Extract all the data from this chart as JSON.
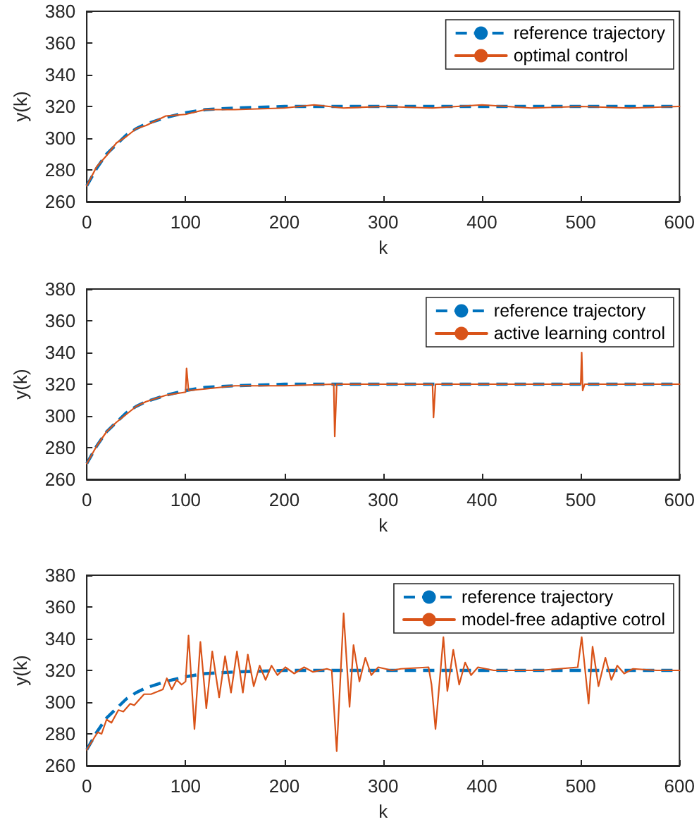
{
  "chart_data": [
    {
      "type": "line",
      "xlabel": "k",
      "ylabel": "y(k)",
      "xlim": [
        0,
        600
      ],
      "ylim": [
        260,
        380
      ],
      "xticks": [
        0,
        100,
        200,
        300,
        400,
        500,
        600
      ],
      "yticks": [
        260,
        280,
        300,
        320,
        340,
        360,
        380
      ],
      "legend": "top right",
      "series": [
        {
          "name": "reference trajectory",
          "color": "#0072bd",
          "line_style": "dashed",
          "x": [
            0,
            10,
            20,
            30,
            40,
            50,
            60,
            80,
            100,
            120,
            150,
            200,
            250,
            300,
            400,
            500,
            600
          ],
          "values": [
            270,
            281,
            290,
            296,
            302,
            306,
            309,
            313,
            316,
            318,
            319,
            320,
            320,
            320,
            320,
            320,
            320
          ]
        },
        {
          "name": "optimal control",
          "color": "#d95319",
          "line_style": "solid",
          "x": [
            0,
            10,
            20,
            30,
            40,
            50,
            60,
            80,
            100,
            120,
            150,
            200,
            230,
            260,
            300,
            350,
            400,
            450,
            500,
            550,
            600
          ],
          "values": [
            270,
            282,
            289,
            297,
            301,
            306,
            308,
            314,
            315,
            318,
            318,
            319,
            321,
            319,
            320,
            319,
            321,
            319,
            320,
            319,
            320
          ]
        }
      ]
    },
    {
      "type": "line",
      "xlabel": "k",
      "ylabel": "y(k)",
      "xlim": [
        0,
        600
      ],
      "ylim": [
        260,
        380
      ],
      "xticks": [
        0,
        100,
        200,
        300,
        400,
        500,
        600
      ],
      "yticks": [
        260,
        280,
        300,
        320,
        340,
        360,
        380
      ],
      "legend": "top right",
      "series": [
        {
          "name": "reference trajectory",
          "color": "#0072bd",
          "line_style": "dashed",
          "x": [
            0,
            10,
            20,
            30,
            40,
            50,
            60,
            80,
            100,
            120,
            150,
            200,
            250,
            300,
            400,
            500,
            600
          ],
          "values": [
            270,
            281,
            290,
            296,
            302,
            306,
            309,
            313,
            316,
            318,
            319,
            320,
            320,
            320,
            320,
            320,
            320
          ]
        },
        {
          "name": "active learning control",
          "color": "#d95319",
          "line_style": "solid",
          "x": [
            0,
            10,
            20,
            30,
            40,
            50,
            60,
            80,
            100,
            101,
            103,
            120,
            150,
            200,
            250,
            251,
            253,
            300,
            350,
            351,
            353,
            400,
            500,
            501,
            502,
            504,
            550,
            600
          ],
          "values": [
            270,
            281,
            290,
            296,
            301,
            306,
            309,
            313,
            315,
            330,
            316,
            317,
            319,
            319,
            320,
            287,
            320,
            320,
            320,
            299,
            320,
            320,
            320,
            340,
            316,
            320,
            320,
            320
          ]
        }
      ]
    },
    {
      "type": "line",
      "xlabel": "k",
      "ylabel": "y(k)",
      "xlim": [
        0,
        600
      ],
      "ylim": [
        260,
        380
      ],
      "xticks": [
        0,
        100,
        200,
        300,
        400,
        500,
        600
      ],
      "yticks": [
        260,
        280,
        300,
        320,
        340,
        360,
        380
      ],
      "legend": "top right",
      "series": [
        {
          "name": "reference trajectory",
          "color": "#0072bd",
          "line_style": "dashed",
          "x": [
            0,
            10,
            20,
            30,
            40,
            50,
            60,
            80,
            100,
            120,
            150,
            200,
            250,
            300,
            400,
            500,
            600
          ],
          "values": [
            270,
            281,
            290,
            296,
            302,
            306,
            309,
            313,
            316,
            318,
            319,
            320,
            320,
            320,
            320,
            320,
            320
          ]
        },
        {
          "name": "model-free adaptive cotrol",
          "color": "#d95319",
          "line_style": "solid",
          "x": [
            0,
            11,
            15,
            20,
            25,
            32,
            37,
            44,
            48,
            58,
            65,
            77,
            81,
            86,
            91,
            96,
            100,
            103,
            109,
            115,
            121,
            127,
            134,
            140,
            146,
            152,
            158,
            163,
            169,
            175,
            181,
            187,
            193,
            201,
            210,
            220,
            229,
            243,
            248,
            250,
            253,
            260,
            266,
            270,
            276,
            282,
            288,
            295,
            309,
            318,
            346,
            349,
            353,
            361,
            365,
            371,
            377,
            383,
            389,
            396,
            412,
            459,
            497,
            501,
            508,
            512,
            518,
            525,
            531,
            537,
            544,
            553,
            577,
            600
          ],
          "values": [
            270,
            281,
            280,
            289,
            287,
            295,
            294,
            299,
            298,
            305,
            305,
            308,
            315,
            308,
            314,
            311,
            313,
            342,
            283,
            338,
            296,
            332,
            303,
            329,
            306,
            332,
            306,
            330,
            310,
            323,
            314,
            323,
            317,
            322,
            318,
            322,
            319,
            321,
            320,
            299,
            269,
            356,
            297,
            336,
            313,
            328,
            317,
            322,
            320,
            321,
            322,
            311,
            283,
            341,
            307,
            333,
            311,
            325,
            317,
            322,
            320,
            320,
            322,
            341,
            299,
            335,
            310,
            328,
            314,
            323,
            318,
            321,
            320,
            320
          ]
        }
      ]
    }
  ]
}
